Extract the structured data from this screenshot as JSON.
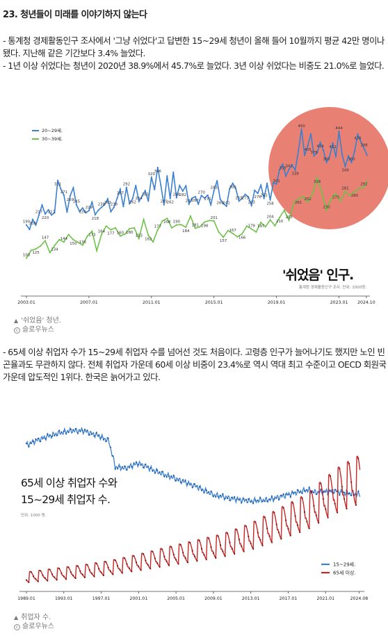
{
  "article": {
    "heading": "23. 청년들이 미래를 이야기하지 않는다",
    "para1": [
      "- 통계청 경제활동인구 조사에서 '그냥 쉬었다'고 답변한 15~29세 청년이 올해 들어 10월까지 평균 42만 명이나 됐다. 지난해 같은 기간보다 3.4% 늘었다.",
      "- 1년 이상 쉬었다는 청년이 2020년 38.9%에서 45.7%로 늘었다. 3년 이상 쉬었다는 비중도 21.0%로 늘었다."
    ],
    "para2": [
      "- 65세 이상 취업자 수가 15~29세 취업자 수를 넘어선 것도 처음이다. 고령층 인구가 늘어나기도 했지만 노인 빈곤율과도 무관하지 않다. 전체 취업자 가운데 60세 이상 비중이 23.4%로 역시 역대 최고 수준이고 OECD 회원국 가운데 압도적인 1위다. 한국은 늙어가고 있다."
    ]
  },
  "figure1": {
    "caption": "'쉬었음' 청년.",
    "credit": "슬로우뉴스",
    "credit_icon": "copyright-icon"
  },
  "figure2": {
    "caption": "취업자 수.",
    "credit": "슬로우뉴스",
    "credit_icon": "copyright-icon"
  },
  "colors": {
    "blue": "#3a7fd0",
    "green": "#6ec24a",
    "red": "#c62626",
    "highlight": "#e46a5a"
  },
  "chart_data": [
    {
      "type": "line",
      "title": "'쉬었음' 인구.",
      "subtitle": "통계청 경제활동인구 조사. 단위: 1000명.",
      "x_ticks": [
        "2003.01",
        "2007.01",
        "2011.01",
        "2015.01",
        "2019.01",
        "2023.01",
        "2024.10"
      ],
      "x_range": [
        2003.0,
        2024.8
      ],
      "ylim": [
        80,
        480
      ],
      "legend": "top-left",
      "annotation": "2020년 이후 구간 강조(붉은 원)",
      "series": [
        {
          "name": "20~29세.",
          "color": "#3a7fd0",
          "points": [
            [
              2003.0,
              190
            ],
            [
              2003.2,
              178
            ],
            [
              2003.4,
              205
            ],
            [
              2003.6,
              190
            ],
            [
              2003.8,
              217
            ],
            [
              2004.0,
              244
            ],
            [
              2004.2,
              220
            ],
            [
              2004.4,
              231
            ],
            [
              2004.6,
              217
            ],
            [
              2004.8,
              223
            ],
            [
              2005.0,
              311
            ],
            [
              2005.2,
              288
            ],
            [
              2005.4,
              271
            ],
            [
              2005.6,
              225
            ],
            [
              2005.8,
              269
            ],
            [
              2006.0,
              291
            ],
            [
              2006.2,
              245
            ],
            [
              2006.4,
              227
            ],
            [
              2006.6,
              236
            ],
            [
              2006.8,
              223
            ],
            [
              2007.0,
              229
            ],
            [
              2007.2,
              252
            ],
            [
              2007.4,
              218
            ],
            [
              2007.6,
              230
            ],
            [
              2007.8,
              238
            ],
            [
              2008.0,
              245
            ],
            [
              2008.2,
              261
            ],
            [
              2008.4,
              226
            ],
            [
              2008.6,
              238
            ],
            [
              2008.8,
              262
            ],
            [
              2009.0,
              287
            ],
            [
              2009.2,
              240
            ],
            [
              2009.4,
              292
            ],
            [
              2009.6,
              248
            ],
            [
              2009.8,
              262
            ],
            [
              2010.0,
              297
            ],
            [
              2010.2,
              254
            ],
            [
              2010.4,
              268
            ],
            [
              2010.6,
              283
            ],
            [
              2010.8,
              255
            ],
            [
              2011.0,
              320
            ],
            [
              2011.2,
              286
            ],
            [
              2011.4,
              346
            ],
            [
              2011.6,
              298
            ],
            [
              2011.8,
              245
            ],
            [
              2012.0,
              323
            ],
            [
              2012.2,
              262
            ],
            [
              2012.4,
              333
            ],
            [
              2012.6,
              264
            ],
            [
              2012.8,
              297
            ],
            [
              2013.0,
              282
            ],
            [
              2013.2,
              296
            ],
            [
              2013.4,
              247
            ],
            [
              2013.6,
              263
            ],
            [
              2013.8,
              267
            ],
            [
              2014.0,
              247
            ],
            [
              2014.2,
              270
            ],
            [
              2014.4,
              263
            ],
            [
              2014.6,
              271
            ],
            [
              2014.8,
              245
            ],
            [
              2015.0,
              283
            ],
            [
              2015.2,
              310
            ],
            [
              2015.4,
              260
            ],
            [
              2015.6,
              248
            ],
            [
              2015.8,
              241
            ],
            [
              2016.0,
              288
            ],
            [
              2016.2,
              303
            ],
            [
              2016.4,
              288
            ],
            [
              2016.6,
              255
            ],
            [
              2016.8,
              262
            ],
            [
              2017.0,
              273
            ],
            [
              2017.2,
              266
            ],
            [
              2017.4,
              243
            ],
            [
              2017.6,
              284
            ],
            [
              2017.8,
              276
            ],
            [
              2018.0,
              298
            ],
            [
              2018.2,
              262
            ],
            [
              2018.4,
              303
            ],
            [
              2018.6,
              258
            ],
            [
              2018.8,
              305
            ],
            [
              2019.0,
              301
            ],
            [
              2019.2,
              341
            ],
            [
              2019.4,
              355
            ],
            [
              2019.6,
              323
            ],
            [
              2019.8,
              341
            ],
            [
              2020.0,
              353
            ],
            [
              2020.2,
              339
            ],
            [
              2020.4,
              391
            ],
            [
              2020.6,
              450
            ],
            [
              2020.8,
              379
            ],
            [
              2021.0,
              405
            ],
            [
              2021.2,
              437
            ],
            [
              2021.4,
              378
            ],
            [
              2021.6,
              386
            ],
            [
              2021.8,
              414
            ],
            [
              2022.0,
              392
            ],
            [
              2022.2,
              360
            ],
            [
              2022.4,
              377
            ],
            [
              2022.6,
              412
            ],
            [
              2022.8,
              375
            ],
            [
              2023.0,
              444
            ],
            [
              2023.2,
              381
            ],
            [
              2023.4,
              349
            ],
            [
              2023.6,
              377
            ],
            [
              2023.8,
              360
            ],
            [
              2024.0,
              390
            ],
            [
              2024.2,
              436
            ],
            [
              2024.4,
              416
            ],
            [
              2024.6,
              398
            ],
            [
              2024.8,
              379
            ]
          ]
        },
        {
          "name": "30~39세.",
          "color": "#6ec24a",
          "points": [
            [
              2003.0,
              100
            ],
            [
              2003.3,
              121
            ],
            [
              2003.6,
              125
            ],
            [
              2003.9,
              133
            ],
            [
              2004.2,
              147
            ],
            [
              2004.5,
              115
            ],
            [
              2004.8,
              134
            ],
            [
              2005.1,
              150
            ],
            [
              2005.4,
              144
            ],
            [
              2005.7,
              164
            ],
            [
              2006.0,
              150
            ],
            [
              2006.3,
              143
            ],
            [
              2006.6,
              135
            ],
            [
              2006.9,
              160
            ],
            [
              2007.2,
              173
            ],
            [
              2007.5,
              120
            ],
            [
              2007.8,
              164
            ],
            [
              2008.1,
              187
            ],
            [
              2008.4,
              177
            ],
            [
              2008.7,
              182
            ],
            [
              2009.0,
              160
            ],
            [
              2009.3,
              165
            ],
            [
              2009.6,
              180
            ],
            [
              2009.9,
              182
            ],
            [
              2010.2,
              153
            ],
            [
              2010.5,
              205
            ],
            [
              2010.8,
              162
            ],
            [
              2011.1,
              144
            ],
            [
              2011.4,
              177
            ],
            [
              2011.7,
              201
            ],
            [
              2012.0,
              208
            ],
            [
              2012.3,
              182
            ],
            [
              2012.6,
              190
            ],
            [
              2012.9,
              191
            ],
            [
              2013.2,
              184
            ],
            [
              2013.5,
              214
            ],
            [
              2013.8,
              181
            ],
            [
              2014.1,
              185
            ],
            [
              2014.4,
              198
            ],
            [
              2014.7,
              202
            ],
            [
              2015.0,
              201
            ],
            [
              2015.3,
              171
            ],
            [
              2015.6,
              157
            ],
            [
              2015.9,
              175
            ],
            [
              2016.2,
              167
            ],
            [
              2016.5,
              158
            ],
            [
              2016.8,
              166
            ],
            [
              2017.1,
              187
            ],
            [
              2017.4,
              179
            ],
            [
              2017.7,
              171
            ],
            [
              2018.0,
              197
            ],
            [
              2018.3,
              185
            ],
            [
              2018.6,
              204
            ],
            [
              2018.9,
              188
            ],
            [
              2019.2,
              210
            ],
            [
              2019.5,
              230
            ],
            [
              2019.8,
              203
            ],
            [
              2020.1,
              249
            ],
            [
              2020.4,
              261
            ],
            [
              2020.7,
              267
            ],
            [
              2021.0,
              252
            ],
            [
              2021.3,
              274
            ],
            [
              2021.6,
              318
            ],
            [
              2021.9,
              278
            ],
            [
              2022.2,
              230
            ],
            [
              2022.5,
              261
            ],
            [
              2022.8,
              275
            ],
            [
              2023.1,
              255
            ],
            [
              2023.4,
              281
            ],
            [
              2023.7,
              270
            ],
            [
              2024.0,
              280
            ],
            [
              2024.3,
              290
            ],
            [
              2024.6,
              292
            ],
            [
              2024.8,
              310
            ]
          ]
        }
      ]
    },
    {
      "type": "line",
      "title": "65세 이상 취업자 수와 15~29세 취업자 수.",
      "subtitle": "단위: 1000 명.",
      "x_ticks": [
        "1989.01",
        "1993.01",
        "1997.01",
        "2001.01",
        "2005.01",
        "2009.01",
        "2013.01",
        "2017.01",
        "2021.01",
        "2024.08"
      ],
      "x_range": [
        1989.0,
        2024.7
      ],
      "ylim": [
        500,
        5300
      ],
      "legend": "bottom-right",
      "series": [
        {
          "name": "15~29세.",
          "color": "#3a7fd0",
          "anchors": [
            [
              1989.0,
              4580
            ],
            [
              1990.5,
              4750
            ],
            [
              1992.0,
              4880
            ],
            [
              1993.5,
              4980
            ],
            [
              1995.0,
              4990
            ],
            [
              1996.5,
              4860
            ],
            [
              1997.8,
              4700
            ],
            [
              1998.5,
              3950
            ],
            [
              1999.5,
              3900
            ],
            [
              2001.0,
              4050
            ],
            [
              2003.0,
              3800
            ],
            [
              2005.0,
              3600
            ],
            [
              2007.0,
              3400
            ],
            [
              2009.0,
              3140
            ],
            [
              2011.0,
              3030
            ],
            [
              2013.0,
              2960
            ],
            [
              2015.0,
              3000
            ],
            [
              2017.0,
              3150
            ],
            [
              2019.0,
              3280
            ],
            [
              2020.0,
              3210
            ],
            [
              2022.0,
              3250
            ],
            [
              2023.0,
              3200
            ],
            [
              2024.6,
              3150
            ]
          ]
        },
        {
          "name": "65세 이상.",
          "color": "#c62626",
          "anchors": [
            [
              1989.0,
              720
            ],
            [
              1992.0,
              800
            ],
            [
              1995.0,
              880
            ],
            [
              1998.0,
              980
            ],
            [
              2001.0,
              1120
            ],
            [
              2004.0,
              1280
            ],
            [
              2007.0,
              1430
            ],
            [
              2010.0,
              1580
            ],
            [
              2013.0,
              1820
            ],
            [
              2016.0,
              2150
            ],
            [
              2019.0,
              2480
            ],
            [
              2021.0,
              2850
            ],
            [
              2022.5,
              3100
            ],
            [
              2024.6,
              3350
            ]
          ]
        }
      ]
    }
  ]
}
